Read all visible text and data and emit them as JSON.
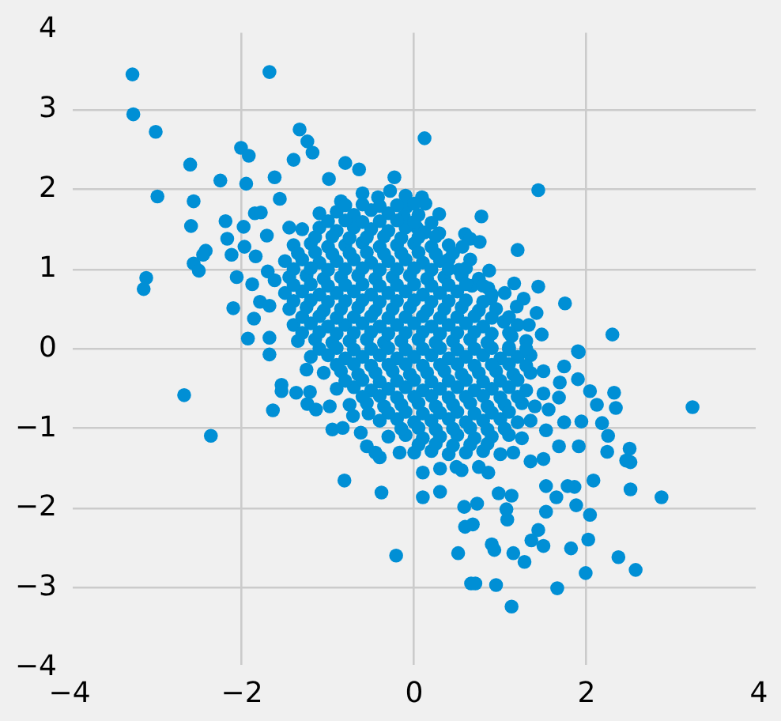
{
  "chart_data": {
    "type": "scatter",
    "color": "#008fd5",
    "marker": "circle",
    "grid": true,
    "xlim": [
      -4,
      4
    ],
    "ylim": [
      -4,
      4
    ],
    "xticks": [
      {
        "value": -4,
        "label": "−4"
      },
      {
        "value": -2,
        "label": "−2"
      },
      0,
      2,
      4
    ],
    "yticks": [
      {
        "value": -4,
        "label": "−4"
      },
      {
        "value": -3,
        "label": "−3"
      },
      {
        "value": -2,
        "label": "−2"
      },
      {
        "value": -1,
        "label": "−1"
      },
      0,
      1,
      2,
      3,
      4
    ],
    "x": [
      -3.27,
      -1.68,
      -3.26,
      -3.0,
      -2.6,
      -1.33,
      -1.24,
      -1.18,
      -2.01,
      -1.92,
      -2.25,
      -1.95,
      -2.98,
      -2.56,
      -2.59,
      -2.19,
      -2.17,
      -2.42,
      -2.45,
      -2.56,
      -2.5,
      -3.11,
      -3.14,
      -2.12,
      -1.97,
      -2.06,
      -1.88,
      -2.1,
      -1.86,
      -1.93,
      -1.98,
      -1.84,
      -1.85,
      -1.78,
      -1.71,
      -1.62,
      -1.4,
      -0.8,
      -0.64,
      -0.99,
      -0.23,
      -1.56,
      -1.45,
      -1.7,
      -1.62,
      -1.79,
      -1.68,
      -1.68,
      -2.67,
      -2.36,
      -0.81,
      -0.38,
      -0.21,
      -1.64,
      -1.54,
      -1.54,
      -1.37,
      -1.21,
      -1.24,
      -0.98,
      -1.14,
      -0.95,
      -0.83,
      -0.71,
      -0.53,
      -0.62,
      -0.55,
      -0.4,
      -0.45,
      -0.17,
      -1.68,
      -1.25,
      0.12,
      1.44,
      0.78,
      0.29,
      0.09,
      0.13,
      0.29,
      0.59,
      0.65,
      0.76,
      1.2,
      0.87,
      0.56,
      0.4,
      0.52,
      0.67,
      0.86,
      0.89,
      1.16,
      1.44,
      1.27,
      1.19,
      1.42,
      1.75,
      1.33,
      1.48,
      1.13,
      1.04,
      2.3,
      1.9,
      0.03,
      -0.09,
      3.23,
      2.87,
      2.51,
      2.57,
      2.37,
      1.99,
      1.66,
      1.13,
      0.95,
      0.66,
      0.71,
      0.51,
      0.9,
      0.93,
      1.15,
      1.28,
      1.5,
      1.44,
      1.36,
      1.82,
      2.02,
      2.04,
      1.88,
      2.08,
      2.51,
      2.46,
      2.5,
      2.24,
      2.25,
      2.18,
      2.04,
      2.32,
      2.34,
      2.12,
      1.94,
      1.9,
      1.91,
      1.74,
      1.69,
      1.68,
      1.74,
      1.68,
      1.91,
      1.86,
      1.65,
      1.53,
      1.78,
      1.53,
      1.08,
      1.07,
      1.13,
      0.98,
      0.73,
      0.58,
      0.59,
      0.68,
      0.1,
      0.3,
      0.1,
      0.49,
      0.86,
      1.5,
      1.35,
      1.53,
      1.56,
      1.5,
      -0.85,
      -0.6,
      -0.42,
      -0.28,
      -0.1,
      -1.1,
      -0.9,
      -0.7,
      -0.5,
      -0.3,
      -0.12,
      0.05,
      -1.3,
      -1.1,
      -0.9,
      -0.7,
      -0.5,
      -0.3,
      -0.1,
      0.12,
      0.2,
      -1.4,
      -1.2,
      -1.0,
      -0.8,
      -0.6,
      -0.4,
      -0.2,
      0.0,
      0.2,
      0.4,
      -1.5,
      -1.3,
      -1.1,
      -0.9,
      -0.7,
      -0.5,
      -0.3,
      -0.1,
      0.1,
      0.3,
      0.65,
      -1.45,
      -1.25,
      -1.05,
      -0.85,
      -0.65,
      -0.45,
      -0.25,
      -0.05,
      0.15,
      0.35,
      0.55,
      0.75,
      -1.5,
      -1.3,
      -1.1,
      -0.9,
      -0.7,
      -0.5,
      -0.3,
      -0.1,
      0.1,
      0.3,
      0.5,
      0.9,
      1.05,
      -1.45,
      -1.25,
      -1.05,
      -0.85,
      -0.65,
      -0.45,
      -0.25,
      -0.05,
      0.15,
      0.35,
      0.55,
      0.75,
      0.95,
      -1.4,
      -1.2,
      -1.0,
      -0.8,
      -0.6,
      -0.4,
      -0.2,
      0.0,
      0.2,
      0.4,
      0.6,
      0.8,
      1.2,
      -1.35,
      -1.15,
      -0.95,
      -0.75,
      -0.55,
      -0.35,
      -0.15,
      0.05,
      0.25,
      0.45,
      0.65,
      0.85,
      1.1,
      1.3,
      -1.2,
      -1.0,
      -0.8,
      -0.6,
      -0.4,
      -0.2,
      0.0,
      0.2,
      0.4,
      0.6,
      0.8,
      1.0,
      1.2,
      1.35,
      -1.05,
      -0.85,
      -0.65,
      -0.45,
      -0.25,
      -0.05,
      0.15,
      0.35,
      0.55,
      0.75,
      0.95,
      1.15,
      1.35,
      1.5,
      -0.9,
      -0.7,
      -0.5,
      -0.3,
      -0.1,
      0.1,
      0.3,
      0.5,
      0.7,
      0.9,
      1.1,
      1.3,
      -0.75,
      -0.55,
      -0.35,
      -0.15,
      0.05,
      0.25,
      0.45,
      0.65,
      0.85,
      1.05,
      1.25,
      1.4,
      -0.4,
      -0.2,
      0.0,
      0.2,
      0.4,
      0.6,
      0.8,
      1.0,
      1.2,
      1.35,
      -0.3,
      -0.1,
      0.1,
      0.3,
      0.5,
      0.7,
      0.9,
      1.1,
      1.25,
      0.0,
      0.2,
      0.4,
      0.6,
      0.8,
      1.0,
      1.15,
      0.3,
      0.55,
      0.75,
      -0.8,
      -0.6,
      -0.4,
      -0.2,
      0.0,
      -1.0,
      -0.8,
      -0.6,
      -0.4,
      -0.2,
      0.0,
      -1.15,
      -0.95,
      -0.75,
      -0.55,
      -0.35,
      -0.15,
      0.05,
      0.25,
      -1.35,
      -1.15,
      -0.95,
      -0.75,
      -0.55,
      -0.35,
      -0.15,
      0.05,
      0.25,
      0.45,
      -1.4,
      -1.2,
      -1.0,
      -0.8,
      -0.6,
      -0.4,
      -0.2,
      0.0,
      0.2,
      0.4,
      0.6,
      -1.4,
      -1.2,
      -1.0,
      -0.8,
      -0.6,
      -0.4,
      -0.2,
      0.0,
      0.2,
      0.4,
      0.6,
      0.8,
      -1.4,
      -1.2,
      -1.0,
      -0.8,
      -0.6,
      -0.4,
      -0.2,
      0.0,
      0.2,
      0.4,
      0.6,
      0.8,
      -1.3,
      -1.1,
      -0.9,
      -0.7,
      -0.5,
      -0.3,
      -0.1,
      0.1,
      0.3,
      0.5,
      0.7,
      0.9,
      1.1,
      -1.3,
      -1.1,
      -0.9,
      -0.7,
      -0.5,
      -0.3,
      -0.1,
      0.1,
      0.3,
      0.5,
      0.7,
      0.9,
      1.1,
      -1.1,
      -0.9,
      -0.7,
      -0.5,
      -0.3,
      -0.1,
      0.1,
      0.3,
      0.5,
      0.7,
      0.9,
      1.1,
      1.3,
      -0.9,
      -0.7,
      -0.5,
      -0.3,
      -0.1,
      0.1,
      0.3,
      0.5,
      0.7,
      0.9,
      1.1,
      1.3,
      -0.8,
      -0.6,
      -0.4,
      -0.2,
      0.0,
      0.2,
      0.4,
      0.6,
      0.8,
      1.0,
      1.2,
      -0.6,
      -0.4,
      -0.2,
      0.0,
      0.2,
      0.4,
      0.6,
      0.8,
      1.0,
      1.2,
      -0.3,
      -0.1,
      0.1,
      0.3,
      0.5,
      0.7,
      0.9,
      1.1,
      -0.15,
      0.05,
      0.25,
      0.45,
      0.65,
      0.85,
      1.05,
      0.05,
      0.25,
      0.45,
      0.65,
      0.85
    ],
    "values": [
      3.44,
      3.47,
      2.94,
      2.72,
      2.31,
      2.75,
      2.6,
      2.46,
      2.52,
      2.42,
      2.11,
      2.07,
      1.91,
      1.85,
      1.54,
      1.6,
      1.38,
      1.23,
      1.18,
      1.07,
      0.98,
      0.89,
      0.75,
      1.18,
      1.28,
      0.9,
      0.81,
      0.51,
      0.38,
      0.13,
      1.53,
      1.16,
      1.7,
      1.71,
      1.42,
      2.15,
      2.37,
      2.33,
      2.25,
      2.13,
      2.15,
      1.88,
      1.52,
      0.97,
      0.86,
      0.59,
      0.54,
      0.14,
      -0.58,
      -1.09,
      -1.65,
      -1.8,
      -2.59,
      -0.77,
      -0.53,
      -0.45,
      -0.55,
      -0.54,
      -0.69,
      -0.72,
      -0.76,
      -1.01,
      -0.99,
      -0.84,
      -0.81,
      -1.05,
      -1.22,
      -1.36,
      -1.3,
      -1.3,
      -0.07,
      -0.26,
      2.64,
      1.99,
      1.66,
      1.69,
      1.9,
      1.82,
      1.45,
      1.44,
      1.38,
      1.34,
      1.24,
      0.98,
      1.28,
      1.12,
      0.99,
      0.79,
      0.76,
      0.63,
      0.82,
      0.78,
      0.63,
      0.53,
      0.45,
      0.57,
      0.3,
      0.18,
      0.16,
      0.34,
      0.18,
      -0.03,
      1.52,
      1.78,
      -0.73,
      -1.86,
      -1.76,
      -2.77,
      -2.61,
      -2.81,
      -3.0,
      -3.23,
      -2.96,
      -2.94,
      -2.94,
      -2.56,
      -2.45,
      -2.52,
      -2.56,
      -2.67,
      -2.47,
      -2.27,
      -2.4,
      -2.5,
      -2.39,
      -2.08,
      -1.96,
      -1.65,
      -1.42,
      -1.4,
      -1.25,
      -1.29,
      -1.09,
      -0.93,
      -0.53,
      -0.55,
      -0.74,
      -0.7,
      -0.91,
      -0.38,
      -0.04,
      -0.22,
      -0.42,
      -0.61,
      -0.92,
      -1.22,
      -1.22,
      -1.73,
      -1.86,
      -1.72,
      -1.72,
      -2.04,
      -2.14,
      -2.01,
      -1.84,
      -1.81,
      -1.94,
      -1.98,
      -2.23,
      -2.2,
      -1.86,
      -1.79,
      -1.55,
      -1.48,
      -1.55,
      -1.38,
      -1.41,
      -1.02,
      -0.76,
      -0.56,
      1.85,
      1.95,
      1.9,
      1.98,
      1.92,
      1.7,
      1.72,
      1.68,
      1.74,
      1.7,
      1.66,
      1.68,
      1.5,
      1.52,
      1.48,
      1.52,
      1.5,
      1.48,
      1.52,
      1.46,
      1.58,
      1.3,
      1.32,
      1.28,
      1.3,
      1.33,
      1.28,
      1.3,
      1.32,
      1.28,
      1.3,
      1.1,
      1.12,
      1.08,
      1.1,
      1.12,
      1.08,
      1.1,
      1.12,
      1.08,
      1.1,
      1.12,
      0.9,
      0.92,
      0.88,
      0.9,
      0.92,
      0.88,
      0.9,
      0.92,
      0.88,
      0.9,
      0.92,
      0.88,
      0.7,
      0.72,
      0.68,
      0.7,
      0.72,
      0.68,
      0.7,
      0.72,
      0.68,
      0.7,
      0.72,
      0.68,
      0.7,
      0.5,
      0.52,
      0.48,
      0.5,
      0.52,
      0.48,
      0.5,
      0.52,
      0.48,
      0.5,
      0.52,
      0.48,
      0.5,
      0.3,
      0.32,
      0.28,
      0.3,
      0.32,
      0.28,
      0.3,
      0.32,
      0.28,
      0.3,
      0.32,
      0.28,
      0.3,
      0.1,
      0.12,
      0.08,
      0.1,
      0.12,
      0.08,
      0.1,
      0.12,
      0.08,
      0.1,
      0.12,
      0.08,
      0.02,
      0.1,
      -0.1,
      -0.08,
      -0.12,
      -0.1,
      -0.08,
      -0.12,
      -0.1,
      -0.08,
      -0.12,
      -0.1,
      -0.08,
      -0.12,
      -0.1,
      -0.08,
      -0.3,
      -0.28,
      -0.32,
      -0.3,
      -0.28,
      -0.32,
      -0.3,
      -0.28,
      -0.32,
      -0.3,
      -0.28,
      -0.32,
      -0.3,
      -0.28,
      -0.5,
      -0.48,
      -0.52,
      -0.5,
      -0.48,
      -0.52,
      -0.5,
      -0.48,
      -0.52,
      -0.5,
      -0.48,
      -0.52,
      -0.7,
      -0.68,
      -0.72,
      -0.7,
      -0.68,
      -0.72,
      -0.7,
      -0.68,
      -0.72,
      -0.7,
      -0.68,
      -0.72,
      -0.9,
      -0.88,
      -0.92,
      -0.9,
      -0.88,
      -0.92,
      -0.9,
      -0.88,
      -0.92,
      -0.9,
      -1.1,
      -1.08,
      -1.12,
      -1.1,
      -1.08,
      -1.12,
      -1.1,
      -1.08,
      -1.12,
      -1.3,
      -1.28,
      -1.32,
      -1.3,
      -1.28,
      -1.32,
      -1.3,
      -1.5,
      -1.52,
      -1.48,
      1.8,
      1.81,
      1.79,
      1.8,
      1.82,
      1.6,
      1.61,
      1.59,
      1.6,
      1.61,
      1.59,
      1.4,
      1.41,
      1.39,
      1.4,
      1.41,
      1.39,
      1.4,
      1.41,
      1.2,
      1.21,
      1.19,
      1.2,
      1.21,
      1.19,
      1.2,
      1.21,
      1.19,
      1.2,
      1.0,
      1.01,
      0.99,
      1.0,
      1.01,
      0.99,
      1.0,
      1.01,
      0.99,
      1.0,
      1.01,
      0.8,
      0.81,
      0.79,
      0.8,
      0.81,
      0.79,
      0.8,
      0.81,
      0.79,
      0.8,
      0.81,
      0.79,
      0.6,
      0.61,
      0.59,
      0.6,
      0.61,
      0.59,
      0.6,
      0.61,
      0.59,
      0.6,
      0.61,
      0.59,
      0.4,
      0.41,
      0.39,
      0.4,
      0.41,
      0.39,
      0.4,
      0.41,
      0.39,
      0.4,
      0.41,
      0.39,
      0.4,
      0.2,
      0.21,
      0.19,
      0.2,
      0.21,
      0.19,
      0.2,
      0.21,
      0.19,
      0.2,
      0.21,
      0.19,
      0.2,
      0.0,
      0.01,
      -0.01,
      0.0,
      0.01,
      -0.01,
      0.0,
      0.01,
      -0.01,
      0.0,
      0.01,
      -0.01,
      0.0,
      -0.2,
      -0.19,
      -0.21,
      -0.2,
      -0.19,
      -0.21,
      -0.2,
      -0.19,
      -0.21,
      -0.2,
      -0.19,
      -0.21,
      -0.4,
      -0.39,
      -0.41,
      -0.4,
      -0.39,
      -0.41,
      -0.4,
      -0.39,
      -0.41,
      -0.4,
      -0.39,
      -0.6,
      -0.59,
      -0.61,
      -0.6,
      -0.59,
      -0.61,
      -0.6,
      -0.59,
      -0.61,
      -0.6,
      -0.8,
      -0.79,
      -0.81,
      -0.8,
      -0.79,
      -0.81,
      -0.8,
      -0.79,
      -1.0,
      -0.99,
      -1.01,
      -1.0,
      -0.99,
      -1.01,
      -1.0,
      -1.2,
      -1.19,
      -1.21,
      -1.2,
      -1.19
    ]
  }
}
